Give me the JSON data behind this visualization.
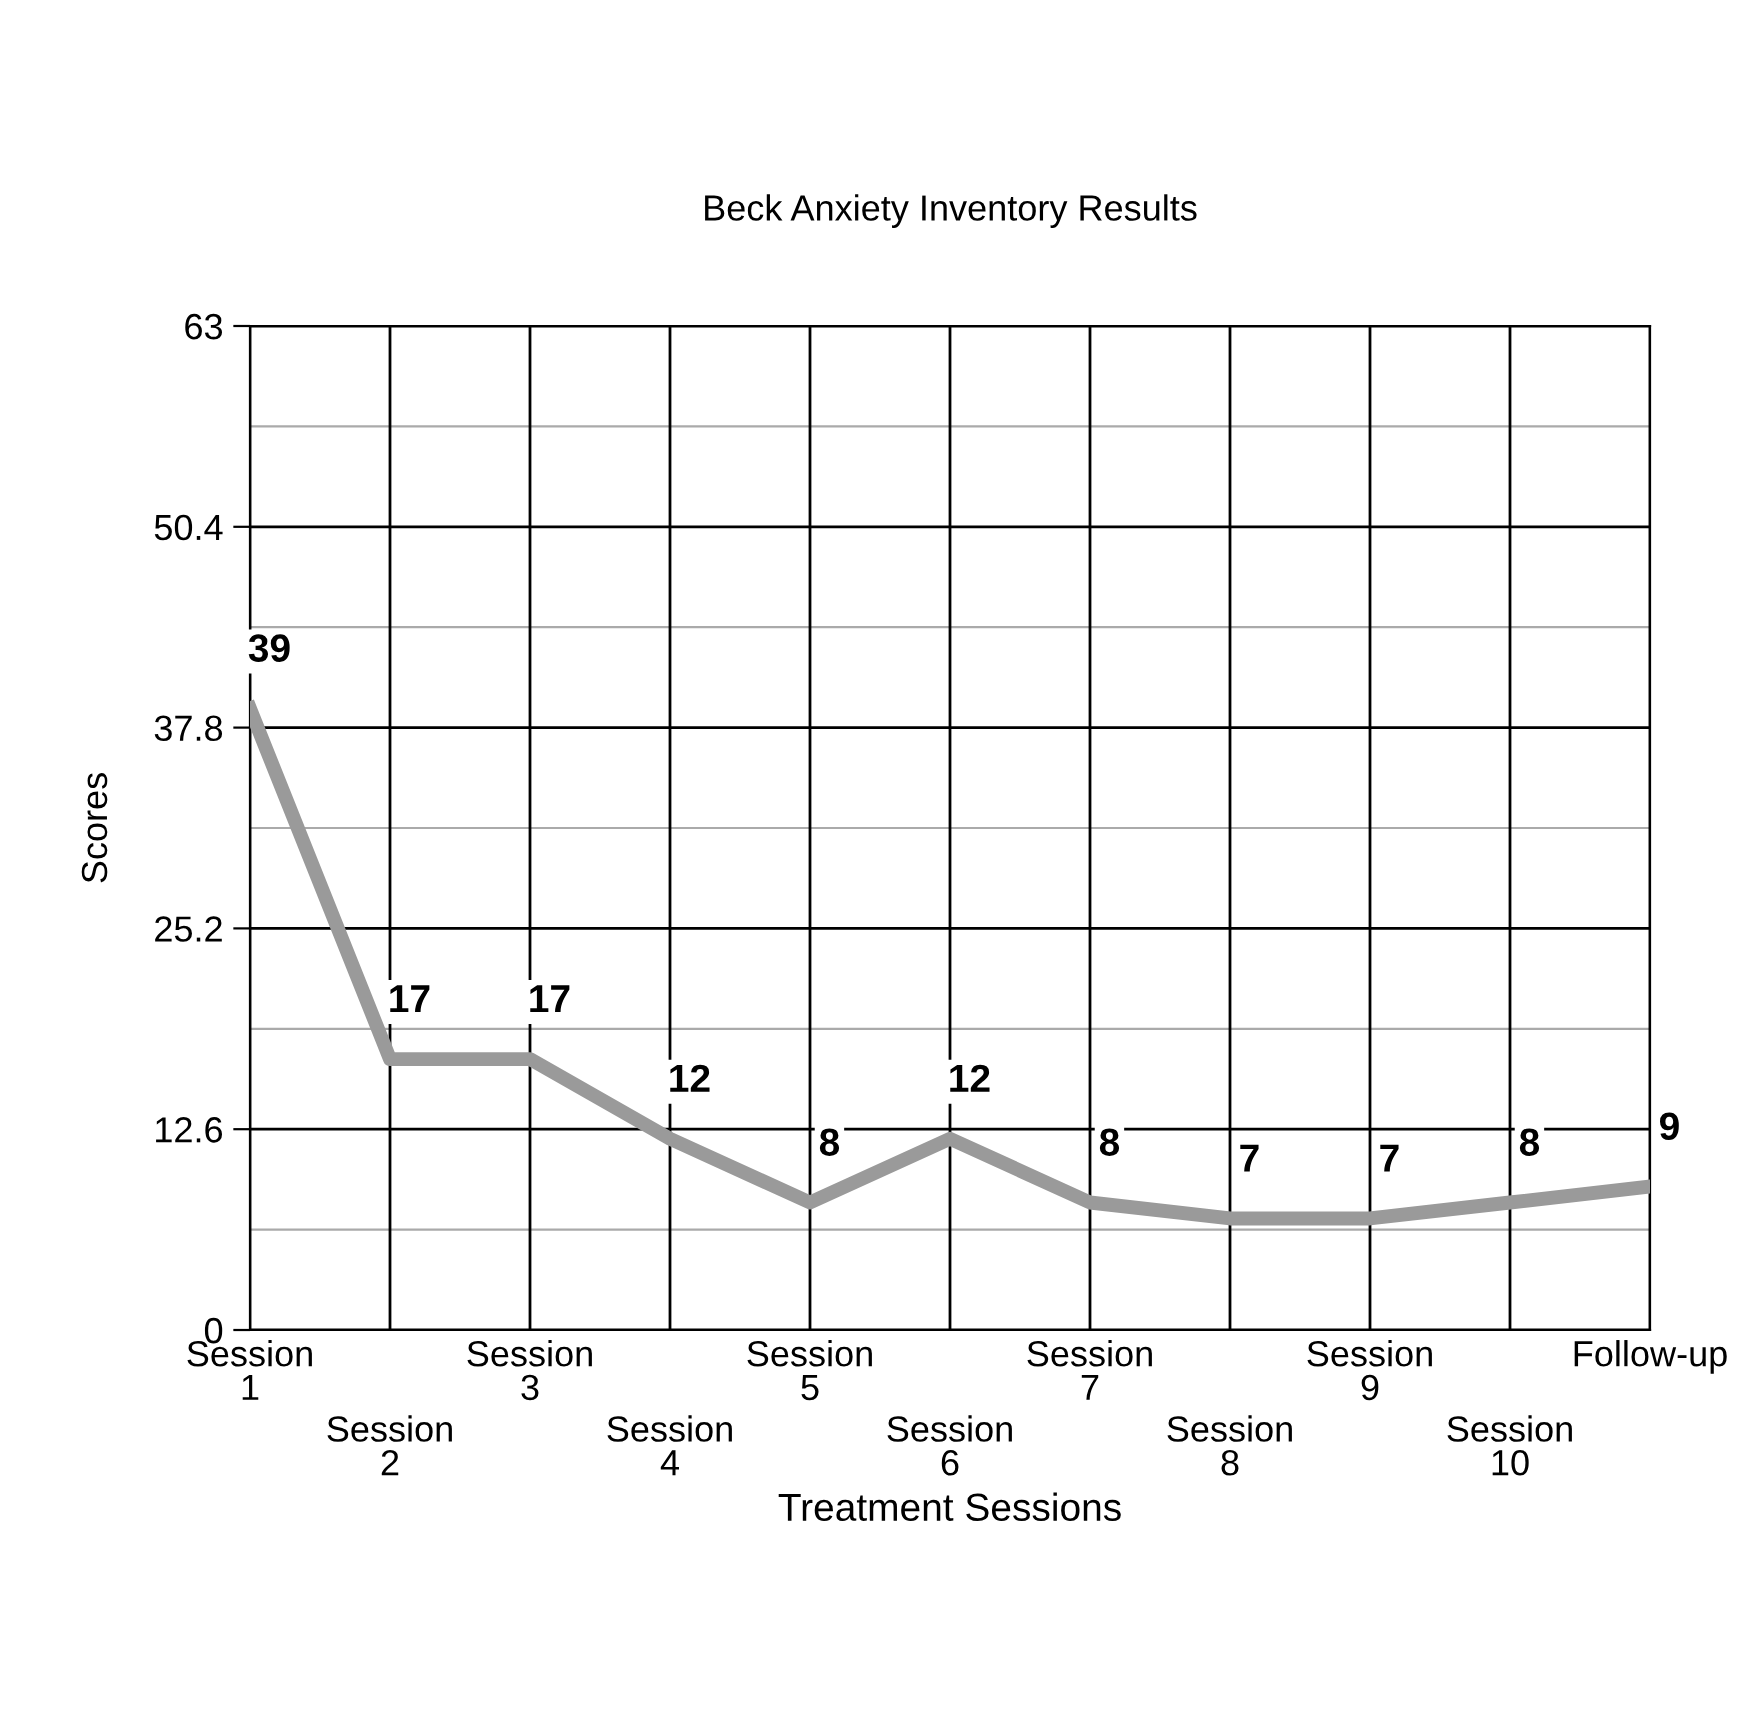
{
  "chart_data": {
    "type": "line",
    "title": "Beck Anxiety Inventory Results",
    "xlabel": "Treatment Sessions",
    "ylabel": "Scores",
    "categories": [
      "Session 1",
      "Session 2",
      "Session 3",
      "Session 4",
      "Session 5",
      "Session 6",
      "Session 7",
      "Session 8",
      "Session 9",
      "Session 10",
      "Follow-up"
    ],
    "series": [
      {
        "color": "#9a9a9a",
        "values": [
          39,
          17,
          17,
          12,
          8,
          12,
          8,
          7,
          7,
          8,
          9
        ]
      }
    ],
    "ylim": [
      0,
      63
    ],
    "yticks": [
      0,
      {
        "value": 6.3,
        "label": null
      },
      12.6,
      {
        "value": 18.9,
        "label": null
      },
      25.2,
      {
        "value": 31.5,
        "label": null
      },
      37.8,
      {
        "value": 44.1,
        "label": null
      },
      50.4,
      {
        "value": 56.7,
        "label": null
      },
      63
    ],
    "grid": true,
    "data_labels": true,
    "marker": "none",
    "line_style": "solid",
    "legend": false
  }
}
